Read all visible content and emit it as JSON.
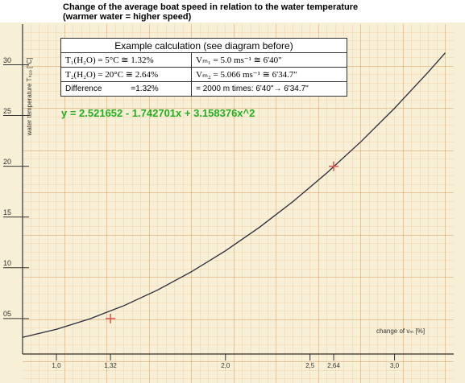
{
  "chart_data": {
    "type": "line",
    "title": "Change of the average boat speed in relation to the water temperature",
    "subtitle": "(warmer water = higher speed)",
    "xlabel": "change of vₘ [%]",
    "ylabel": "water temperature Tₕ₂ₒ [°C]",
    "xlim": [
      0.8,
      3.35
    ],
    "ylim": [
      1.5,
      34
    ],
    "xticks": [
      {
        "value": 1.0,
        "label": "1,0"
      },
      {
        "value": 1.32,
        "label": "1,32"
      },
      {
        "value": 2.0,
        "label": "2,0"
      },
      {
        "value": 2.5,
        "label": "2,5"
      },
      {
        "value": 2.64,
        "label": "2,64"
      },
      {
        "value": 3.0,
        "label": "3,0"
      }
    ],
    "yticks": [
      {
        "value": 5,
        "label": "05"
      },
      10,
      15,
      20,
      25,
      30
    ],
    "grid": true,
    "curve": {
      "color": "#2a2a40",
      "x": [
        0.8,
        1.0,
        1.2,
        1.4,
        1.6,
        1.8,
        2.0,
        2.2,
        2.4,
        2.6,
        2.8,
        3.0,
        3.2,
        3.3
      ],
      "y": [
        3.15,
        3.94,
        4.98,
        6.27,
        7.82,
        9.62,
        11.67,
        13.97,
        16.53,
        19.34,
        22.4,
        25.72,
        29.29,
        31.17
      ]
    },
    "points": {
      "color": "#d9534f",
      "x": [
        1.32,
        2.64
      ],
      "y": [
        5,
        20
      ]
    },
    "equation": "y = 2.521652 - 1.742701x + 3.158376x^2",
    "equation_color": "#22b022",
    "table": {
      "header": "Example calculation (see diagram before)",
      "rows": [
        [
          "T₁(H₂O) = 5°C ≅ 1.32%",
          "Vₘ₁ = 5.0 ms⁻¹ ≅ 6'40\""
        ],
        [
          "T₂(H₂O) = 20°C ≅ 2.64%",
          "Vₘ₂ = 5.066 ms⁻¹ ≅ 6'34.7\""
        ],
        [
          "Difference",
          "=1.32%",
          "= 2000 m times: 6'40\"→ 6'34.7\""
        ]
      ]
    }
  }
}
